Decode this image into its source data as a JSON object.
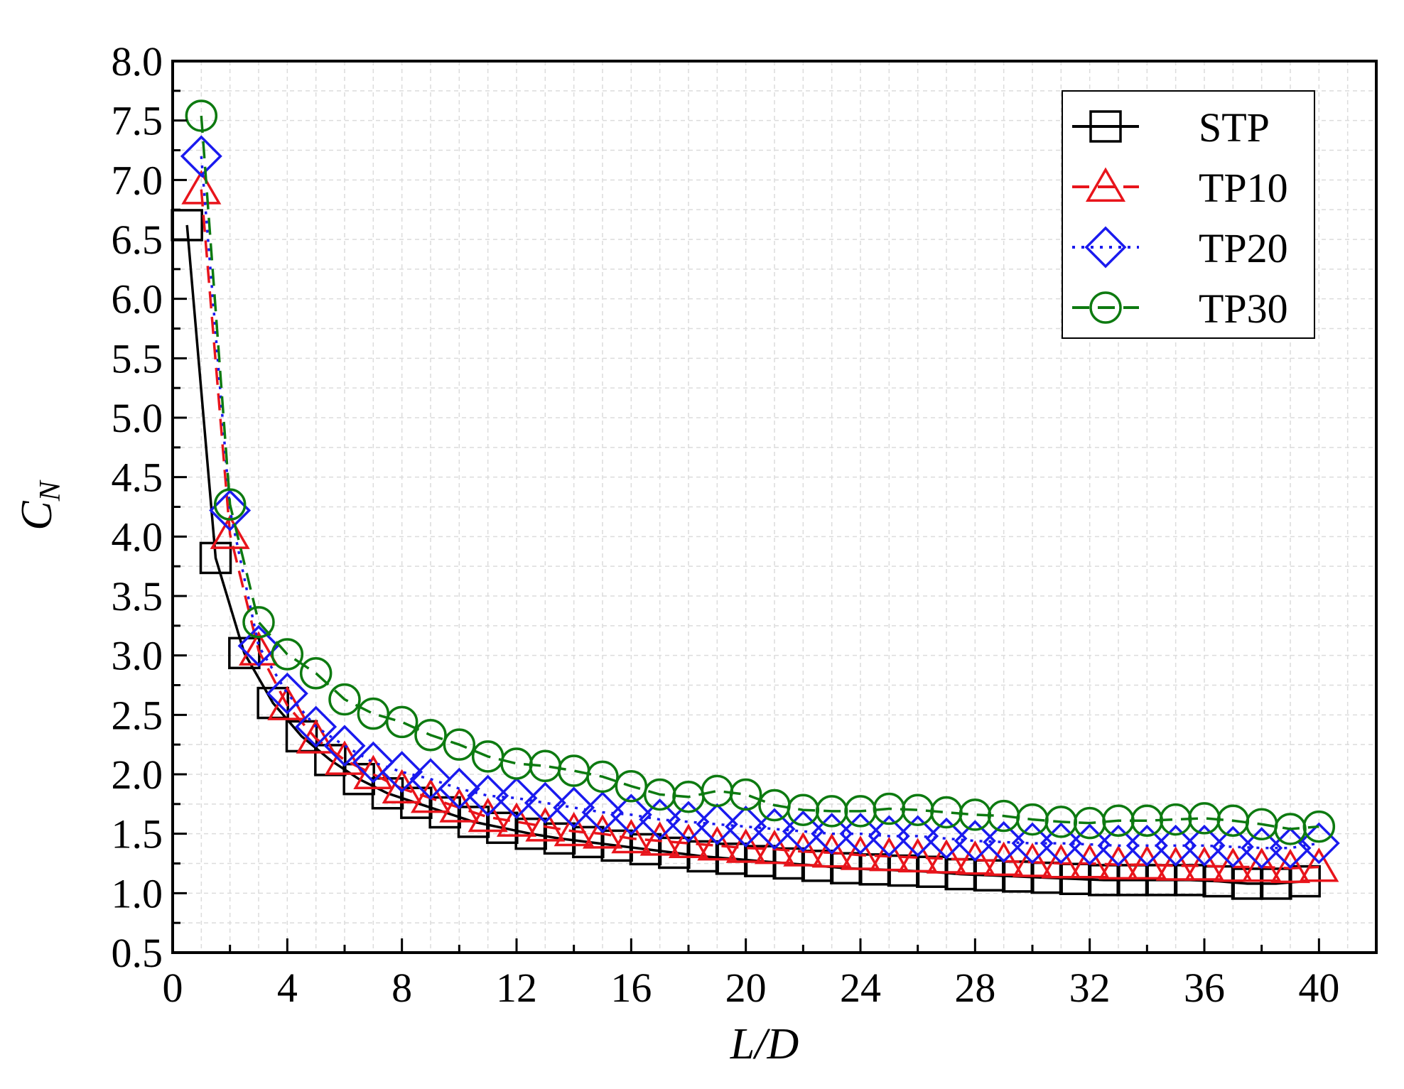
{
  "chart_data": {
    "type": "line",
    "title": "",
    "xlabel": "L/D",
    "ylabel_main": "C",
    "ylabel_sub": "N",
    "xlim": [
      0,
      42
    ],
    "ylim": [
      0.5,
      8.0
    ],
    "xticks": [
      0,
      4,
      8,
      12,
      16,
      20,
      24,
      28,
      32,
      36,
      40
    ],
    "yticks": [
      0.5,
      1.0,
      1.5,
      2.0,
      2.5,
      3.0,
      3.5,
      4.0,
      4.5,
      5.0,
      5.5,
      6.0,
      6.5,
      7.0,
      7.5,
      8.0
    ],
    "grid": true,
    "legend_position": "top-right",
    "series": [
      {
        "name": "STP",
        "color": "#000000",
        "marker": "square",
        "dash": "solid",
        "x": [
          0.5,
          1.5,
          2.5,
          3.5,
          4.5,
          5.5,
          6.5,
          7.5,
          8.5,
          9.5,
          10.5,
          11.5,
          12.5,
          13.5,
          14.5,
          15.5,
          16.5,
          17.5,
          18.5,
          19.5,
          20.5,
          21.5,
          22.5,
          23.5,
          24.5,
          25.5,
          26.5,
          27.5,
          28.5,
          29.5,
          30.5,
          31.5,
          32.5,
          33.5,
          34.5,
          35.5,
          36.5,
          37.5,
          38.5,
          39.5
        ],
        "y": [
          6.62,
          3.82,
          3.02,
          2.6,
          2.32,
          2.12,
          1.96,
          1.84,
          1.76,
          1.68,
          1.6,
          1.55,
          1.5,
          1.46,
          1.43,
          1.4,
          1.37,
          1.34,
          1.31,
          1.29,
          1.27,
          1.25,
          1.23,
          1.21,
          1.2,
          1.19,
          1.18,
          1.16,
          1.15,
          1.14,
          1.13,
          1.12,
          1.11,
          1.11,
          1.11,
          1.11,
          1.1,
          1.08,
          1.08,
          1.1
        ]
      },
      {
        "name": "TP10",
        "color": "#e8141b",
        "marker": "triangle",
        "dash": "dashed",
        "x": [
          1,
          2,
          3,
          4,
          5,
          6,
          7,
          8,
          9,
          10,
          11,
          12,
          13,
          14,
          15,
          16,
          17,
          18,
          19,
          20,
          21,
          22,
          23,
          24,
          25,
          26,
          27,
          28,
          29,
          30,
          31,
          32,
          33,
          34,
          35,
          36,
          37,
          38,
          39,
          40
        ],
        "y": [
          6.92,
          4.02,
          3.04,
          2.58,
          2.3,
          2.12,
          2.0,
          1.88,
          1.8,
          1.72,
          1.64,
          1.6,
          1.56,
          1.52,
          1.5,
          1.46,
          1.44,
          1.42,
          1.4,
          1.38,
          1.37,
          1.35,
          1.34,
          1.32,
          1.31,
          1.3,
          1.29,
          1.28,
          1.27,
          1.26,
          1.25,
          1.25,
          1.24,
          1.24,
          1.23,
          1.23,
          1.22,
          1.22,
          1.21,
          1.22
        ]
      },
      {
        "name": "TP20",
        "color": "#1a1aee",
        "marker": "diamond",
        "dash": "dotted",
        "x": [
          1,
          2,
          3,
          4,
          5,
          6,
          7,
          8,
          9,
          10,
          11,
          12,
          13,
          14,
          15,
          16,
          17,
          18,
          19,
          20,
          21,
          22,
          23,
          24,
          25,
          26,
          27,
          28,
          29,
          30,
          31,
          32,
          33,
          34,
          35,
          36,
          37,
          38,
          39,
          40
        ],
        "y": [
          7.2,
          4.22,
          3.08,
          2.68,
          2.4,
          2.24,
          2.1,
          2.02,
          1.96,
          1.88,
          1.82,
          1.8,
          1.76,
          1.72,
          1.68,
          1.66,
          1.62,
          1.6,
          1.58,
          1.56,
          1.54,
          1.52,
          1.5,
          1.5,
          1.48,
          1.48,
          1.46,
          1.44,
          1.43,
          1.42,
          1.42,
          1.41,
          1.4,
          1.4,
          1.4,
          1.4,
          1.39,
          1.38,
          1.38,
          1.42
        ]
      },
      {
        "name": "TP30",
        "color": "#0d7a10",
        "marker": "circle",
        "dash": "dashed",
        "x": [
          1,
          2,
          3,
          4,
          5,
          6,
          7,
          8,
          9,
          10,
          11,
          12,
          13,
          14,
          15,
          16,
          17,
          18,
          19,
          20,
          21,
          22,
          23,
          24,
          25,
          26,
          27,
          28,
          29,
          30,
          31,
          32,
          33,
          34,
          35,
          36,
          37,
          38,
          39,
          40
        ],
        "y": [
          7.54,
          4.27,
          3.28,
          3.01,
          2.85,
          2.63,
          2.51,
          2.44,
          2.33,
          2.25,
          2.15,
          2.09,
          2.07,
          2.03,
          1.98,
          1.9,
          1.83,
          1.81,
          1.86,
          1.83,
          1.74,
          1.7,
          1.69,
          1.69,
          1.71,
          1.7,
          1.68,
          1.66,
          1.65,
          1.62,
          1.6,
          1.59,
          1.61,
          1.61,
          1.62,
          1.63,
          1.61,
          1.58,
          1.54,
          1.56
        ]
      }
    ]
  }
}
